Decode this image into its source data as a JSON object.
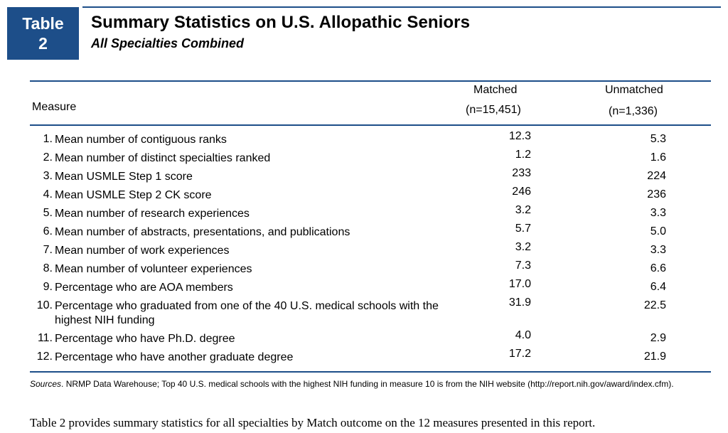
{
  "badge": {
    "line1": "Table",
    "line2": "2"
  },
  "title": "Summary Statistics on U.S. Allopathic Seniors",
  "subtitle": "All Specialties Combined",
  "header": {
    "measure": "Measure",
    "matched": "Matched",
    "matched_n": "(n=15,451)",
    "unmatched": "Unmatched",
    "unmatched_n": "(n=1,336)"
  },
  "rows": [
    {
      "num": "1.",
      "measure": "Mean number of contiguous ranks",
      "matched": "12.3",
      "unmatched": "5.3"
    },
    {
      "num": "2.",
      "measure": "Mean number of distinct specialties ranked",
      "matched": "1.2",
      "unmatched": "1.6"
    },
    {
      "num": "3.",
      "measure": "Mean USMLE Step 1 score",
      "matched": "233",
      "unmatched": "224"
    },
    {
      "num": "4.",
      "measure": "Mean USMLE Step 2 CK score",
      "matched": "246",
      "unmatched": "236"
    },
    {
      "num": "5.",
      "measure": "Mean number of research experiences",
      "matched": "3.2",
      "unmatched": "3.3"
    },
    {
      "num": "6.",
      "measure": "Mean number of abstracts, presentations, and publications",
      "matched": "5.7",
      "unmatched": "5.0"
    },
    {
      "num": "7.",
      "measure": "Mean number of work experiences",
      "matched": "3.2",
      "unmatched": "3.3"
    },
    {
      "num": "8.",
      "measure": "Mean number of volunteer experiences",
      "matched": "7.3",
      "unmatched": "6.6"
    },
    {
      "num": "9.",
      "measure": "Percentage who are AOA members",
      "matched": "17.0",
      "unmatched": "6.4"
    },
    {
      "num": "10.",
      "measure": "Percentage who graduated from one of the 40 U.S. medical schools with the highest NIH funding",
      "matched": "31.9",
      "unmatched": "22.5"
    },
    {
      "num": "11.",
      "measure": "Percentage who have Ph.D. degree",
      "matched": "4.0",
      "unmatched": "2.9"
    },
    {
      "num": "12.",
      "measure": "Percentage who have another graduate degree",
      "matched": "17.2",
      "unmatched": "21.9"
    }
  ],
  "sources": {
    "label": "Sources",
    "text": ".  NRMP Data Warehouse; Top 40 U.S. medical schools with the highest NIH funding in measure 10 is from the NIH website (http://report.nih.gov/award/index.cfm)."
  },
  "caption": "Table 2 provides summary statistics for all specialties by Match outcome on the 12 measures presented in this report."
}
